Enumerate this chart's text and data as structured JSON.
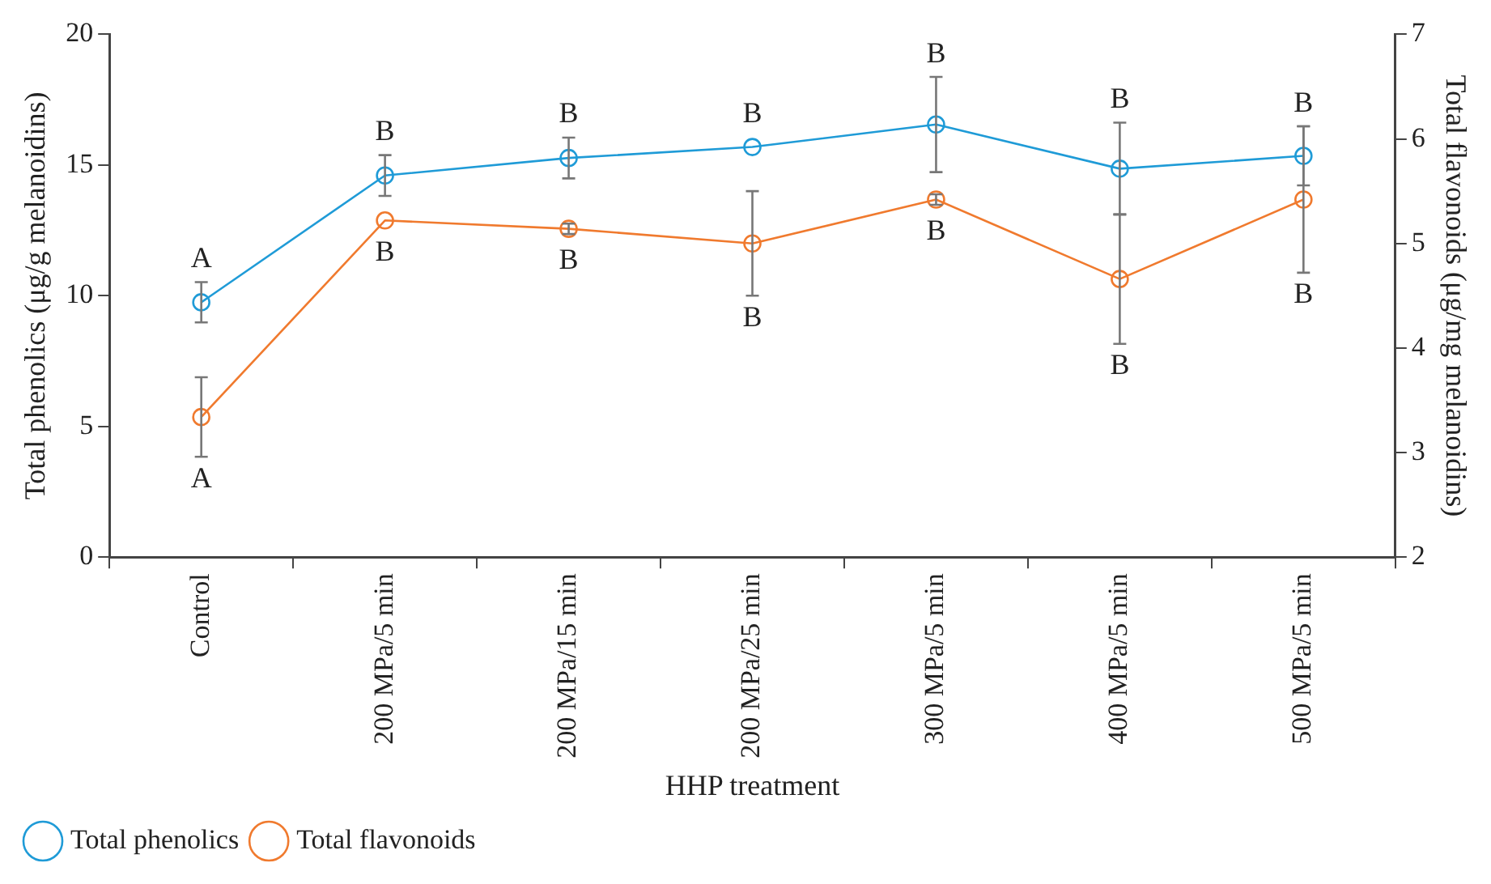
{
  "chart_data": {
    "type": "line",
    "xlabel": "HHP treatment",
    "ylabel": "Total phenolics (μg/g melanoidins)",
    "y2label": "Total flavonoids (μg/mg melanoidins)",
    "categories": [
      "Control",
      "200 MPa/5 min",
      "200 MPa/15 min",
      "200 MPa/25 min",
      "300 MPa/5 min",
      "400 MPa/5 min",
      "500 MPa/5 min"
    ],
    "series": [
      {
        "name": "Total phenolics",
        "color": "#1f9bd7",
        "values": [
          9.75,
          14.6,
          15.27,
          15.69,
          16.55,
          14.86,
          15.35
        ],
        "errors": [
          0.77,
          0.78,
          0.78,
          null,
          1.82,
          1.76,
          1.13
        ]
      },
      {
        "name": "Total flavonoids",
        "color": "#f07a2e",
        "axis": "y2",
        "values": [
          3.34,
          5.22,
          5.14,
          5.0,
          5.42,
          4.66,
          5.42
        ],
        "errors": [
          0.38,
          null,
          0.05,
          0.5,
          0.05,
          0.62,
          0.7
        ]
      }
    ],
    "ylim": [
      0,
      20
    ],
    "yticks": [
      0,
      5,
      10,
      15,
      20
    ],
    "y2lim": [
      2,
      7
    ],
    "y2ticks": [
      2,
      3,
      4,
      5,
      6,
      7
    ],
    "grid": false,
    "legend": "bottom",
    "marker": "circle",
    "line_style": "solid",
    "annotations": [
      "A",
      "B",
      "B",
      "B",
      "B",
      "B",
      "B",
      "A",
      "B",
      "B",
      "B",
      "B",
      "B",
      "B"
    ]
  }
}
